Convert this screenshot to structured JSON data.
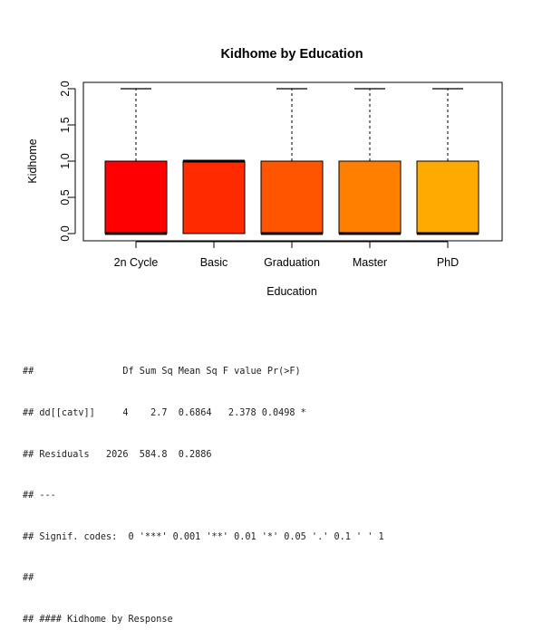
{
  "chart_data": {
    "type": "boxplot",
    "title": "Kidhome by Education",
    "xlabel": "Education",
    "ylabel": "Kidhome",
    "ylim": [
      0,
      2
    ],
    "yticks": [
      "0.0",
      "0.5",
      "1.0",
      "1.5",
      "2.0"
    ],
    "categories": [
      "2n Cycle",
      "Basic",
      "Graduation",
      "Master",
      "PhD"
    ],
    "boxes": [
      {
        "min": 0,
        "q1": 0,
        "median": 0,
        "q3": 1,
        "max": 2
      },
      {
        "min": 0,
        "q1": 0,
        "median": 1,
        "q3": 1,
        "max": 1
      },
      {
        "min": 0,
        "q1": 0,
        "median": 0,
        "q3": 1,
        "max": 2
      },
      {
        "min": 0,
        "q1": 0,
        "median": 0,
        "q3": 1,
        "max": 2
      },
      {
        "min": 0,
        "q1": 0,
        "median": 0,
        "q3": 1,
        "max": 2
      }
    ],
    "colors": [
      "#FF0000",
      "#FF2A00",
      "#FF5500",
      "#FF7F00",
      "#FFAA00"
    ],
    "grid": false
  },
  "console": {
    "lines": [
      "##                Df Sum Sq Mean Sq F value Pr(>F)  ",
      "## dd[[catv]]     4    2.7  0.6864   2.378 0.0498 *",
      "## Residuals   2026  584.8  0.2886                 ",
      "## ---",
      "## Signif. codes:  0 '***' 0.001 '**' 0.01 '*' 0.05 '.' 0.1 ' ' 1",
      "##",
      "## #### Kidhome by Response"
    ]
  }
}
